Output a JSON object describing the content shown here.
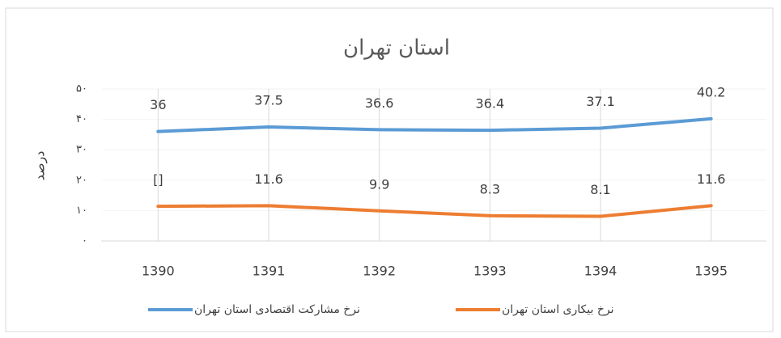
{
  "chart_data": {
    "type": "line",
    "title": "استان تهران",
    "ylabel": "درصد",
    "categories": [
      "1390",
      "1391",
      "1392",
      "1393",
      "1394",
      "1395"
    ],
    "series": [
      {
        "name": "نرخ مشارکت اقتصادی استان تهران",
        "color": "#5b9bd5",
        "values": [
          36,
          37.5,
          36.6,
          36.4,
          37.1,
          40.2
        ]
      },
      {
        "name": "نرخ بیکاری استان تهران",
        "color": "#ed7d31",
        "values": [
          11.4,
          11.6,
          9.9,
          8.3,
          8.1,
          11.6
        ],
        "value_labels": [
          "[]",
          "11.6",
          "9.9",
          "8.3",
          "8.1",
          "11.6"
        ]
      }
    ],
    "ylim": [
      0,
      50
    ],
    "yticks": [
      {
        "value": 0,
        "label": "۰"
      },
      {
        "value": 10,
        "label": "۱۰"
      },
      {
        "value": 20,
        "label": "۲۰"
      },
      {
        "value": 30,
        "label": "۳۰"
      },
      {
        "value": 40,
        "label": "۴۰"
      },
      {
        "value": 50,
        "label": "۵۰"
      }
    ],
    "grid": true,
    "legend": "bottom"
  }
}
